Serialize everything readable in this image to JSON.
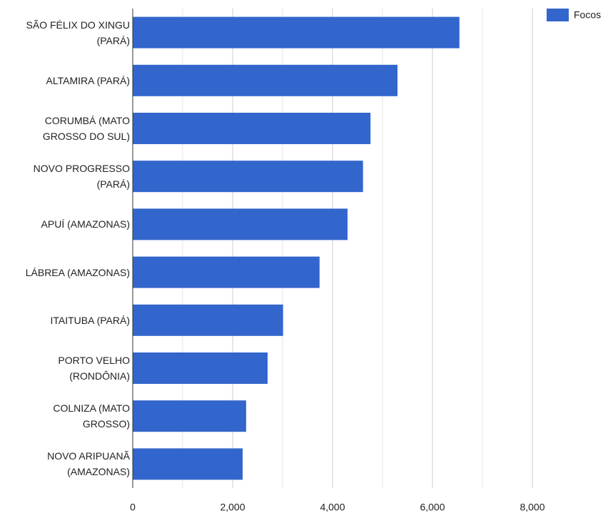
{
  "chart_data": {
    "type": "hbar",
    "categories": [
      "SÃO FÉLIX DO XINGU (PARÁ)",
      "ALTAMIRA (PARÁ)",
      "CORUMBÁ (MATO GROSSO DO SUL)",
      "NOVO PROGRESSO (PARÁ)",
      "APUÍ (AMAZONAS)",
      "LÁBREA (AMAZONAS)",
      "ITAITUBA (PARÁ)",
      "PORTO VELHO (RONDÔNIA)",
      "COLNIZA (MATO GROSSO)",
      "NOVO ARIPUANÃ (AMAZONAS)"
    ],
    "series": [
      {
        "name": "Focos",
        "color": "#3366cc",
        "values": [
          6540,
          5300,
          4760,
          4610,
          4300,
          3740,
          3010,
          2700,
          2270,
          2200
        ]
      }
    ],
    "xlim": [
      0,
      8000
    ],
    "xticks": [
      0,
      {
        "value": 2000,
        "label": "2,000"
      },
      {
        "value": 4000,
        "label": "4,000"
      },
      {
        "value": 6000,
        "label": "6,000"
      },
      {
        "value": 8000,
        "label": "8,000"
      }
    ],
    "xminor": [
      1000,
      3000,
      5000,
      7000
    ],
    "grid": true,
    "legend": "top-right"
  }
}
